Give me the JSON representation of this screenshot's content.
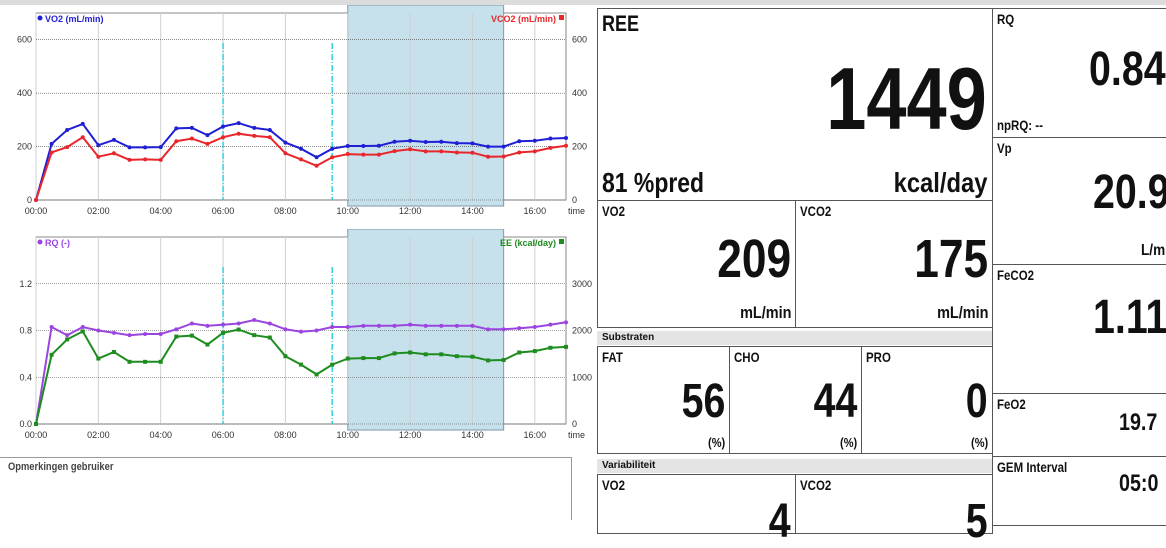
{
  "header": {
    "title": ""
  },
  "metrics": {
    "ree": {
      "label": "REE",
      "value": "1449",
      "pred": "81 %pred",
      "unit": "kcal/day"
    },
    "vo2": {
      "label": "VO2",
      "value": "209",
      "unit": "mL/min"
    },
    "vco2": {
      "label": "VCO2",
      "value": "175",
      "unit": "mL/min"
    },
    "rq": {
      "label": "RQ",
      "value": "0.84",
      "sub": "npRQ: --"
    },
    "vp": {
      "label": "Vp",
      "value": "20.9",
      "unit": "L/m"
    },
    "feco2": {
      "label": "FeCO2",
      "value": "1.11"
    },
    "feo2": {
      "label": "FeO2",
      "value": "19.7"
    },
    "gem_interval": {
      "label": "GEM Interval",
      "value": "05:0"
    }
  },
  "substrates": {
    "title": "Substraten",
    "fat": {
      "label": "FAT",
      "value": "56",
      "unit": "(%)"
    },
    "cho": {
      "label": "CHO",
      "value": "44",
      "unit": "(%)"
    },
    "pro": {
      "label": "PRO",
      "value": "0",
      "unit": "(%)"
    }
  },
  "variability": {
    "title": "Variabiliteit",
    "vo2": {
      "label": "VO2",
      "value": "4"
    },
    "vco2": {
      "label": "VCO2",
      "value": "5"
    }
  },
  "remarks": {
    "label": "Opmerkingen gebruiker"
  },
  "colors": {
    "vo2": "#1f1fd6",
    "vco2": "#e8262b",
    "rq": "#9b45e0",
    "ee": "#1e8c1e",
    "selection": "#c7e1ec",
    "marker": "#00c8d8"
  },
  "chart_data": [
    {
      "type": "line",
      "x": [
        "00:00",
        "00:30",
        "01:00",
        "01:30",
        "02:00",
        "02:30",
        "03:00",
        "03:30",
        "04:00",
        "04:30",
        "05:00",
        "05:30",
        "06:00",
        "06:30",
        "07:00",
        "07:30",
        "08:00",
        "08:30",
        "09:00",
        "09:30",
        "10:00",
        "10:30",
        "11:00",
        "11:30",
        "12:00",
        "12:30",
        "13:00",
        "13:30",
        "14:00",
        "14:30",
        "15:00",
        "15:30",
        "16:00",
        "16:30",
        "17:00"
      ],
      "xticks": [
        "00:00",
        "02:00",
        "04:00",
        "06:00",
        "08:00",
        "10:00",
        "12:00",
        "14:00",
        "16:00"
      ],
      "xlabel": "time",
      "left_axis": {
        "ticks": [
          "0",
          "200",
          "400",
          "600"
        ],
        "ylim": [
          0,
          700
        ]
      },
      "right_axis": {
        "ticks": [
          "0",
          "200",
          "400",
          "600"
        ],
        "ylim": [
          0,
          700
        ]
      },
      "series": [
        {
          "name": "VO2 (mL/min)",
          "color": "#1f1fd6",
          "axis": "left",
          "values": [
            0,
            210,
            262,
            285,
            205,
            225,
            197,
            197,
            198,
            268,
            270,
            243,
            275,
            288,
            270,
            262,
            215,
            192,
            160,
            192,
            202,
            202,
            203,
            218,
            222,
            217,
            218,
            213,
            212,
            200,
            200,
            220,
            222,
            230,
            232
          ]
        },
        {
          "name": "VCO2 (mL/min)",
          "color": "#e8262b",
          "axis": "right",
          "values": [
            0,
            178,
            198,
            235,
            162,
            175,
            150,
            152,
            150,
            220,
            230,
            210,
            235,
            248,
            240,
            235,
            175,
            152,
            128,
            160,
            172,
            170,
            170,
            183,
            190,
            182,
            182,
            178,
            177,
            162,
            163,
            178,
            182,
            195,
            203
          ]
        }
      ],
      "markers": [
        "06:00",
        "09:30"
      ],
      "selection": [
        "10:00",
        "15:00"
      ],
      "grid": true
    },
    {
      "type": "line",
      "x": [
        "00:00",
        "00:30",
        "01:00",
        "01:30",
        "02:00",
        "02:30",
        "03:00",
        "03:30",
        "04:00",
        "04:30",
        "05:00",
        "05:30",
        "06:00",
        "06:30",
        "07:00",
        "07:30",
        "08:00",
        "08:30",
        "09:00",
        "09:30",
        "10:00",
        "10:30",
        "11:00",
        "11:30",
        "12:00",
        "12:30",
        "13:00",
        "13:30",
        "14:00",
        "14:30",
        "15:00",
        "15:30",
        "16:00",
        "16:30",
        "17:00"
      ],
      "xticks": [
        "00:00",
        "02:00",
        "04:00",
        "06:00",
        "08:00",
        "10:00",
        "12:00",
        "14:00",
        "16:00"
      ],
      "xlabel": "time",
      "left_axis": {
        "ticks": [
          "0.0",
          "0.4",
          "0.8",
          "1.2"
        ],
        "ylim": [
          0,
          1.6
        ]
      },
      "right_axis": {
        "ticks": [
          "0",
          "1000",
          "2000",
          "3000"
        ],
        "ylim": [
          0,
          4000
        ]
      },
      "series": [
        {
          "name": "RQ (-)",
          "color": "#9b45e0",
          "axis": "left",
          "values": [
            0,
            0.83,
            0.76,
            0.83,
            0.8,
            0.78,
            0.76,
            0.77,
            0.77,
            0.81,
            0.86,
            0.84,
            0.85,
            0.86,
            0.89,
            0.86,
            0.81,
            0.79,
            0.8,
            0.83,
            0.83,
            0.84,
            0.84,
            0.84,
            0.85,
            0.84,
            0.84,
            0.84,
            0.84,
            0.81,
            0.81,
            0.82,
            0.83,
            0.85,
            0.87
          ]
        },
        {
          "name": "EE (kcal/day)",
          "color": "#1e8c1e",
          "axis": "right",
          "values": [
            0,
            1480,
            1810,
            1980,
            1400,
            1540,
            1330,
            1330,
            1330,
            1870,
            1890,
            1700,
            1950,
            2020,
            1900,
            1850,
            1450,
            1270,
            1060,
            1270,
            1400,
            1410,
            1410,
            1510,
            1530,
            1490,
            1490,
            1450,
            1440,
            1360,
            1370,
            1530,
            1560,
            1630,
            1650
          ]
        }
      ],
      "markers": [
        "06:00",
        "09:30"
      ],
      "selection": [
        "10:00",
        "15:00"
      ],
      "grid": true
    }
  ]
}
